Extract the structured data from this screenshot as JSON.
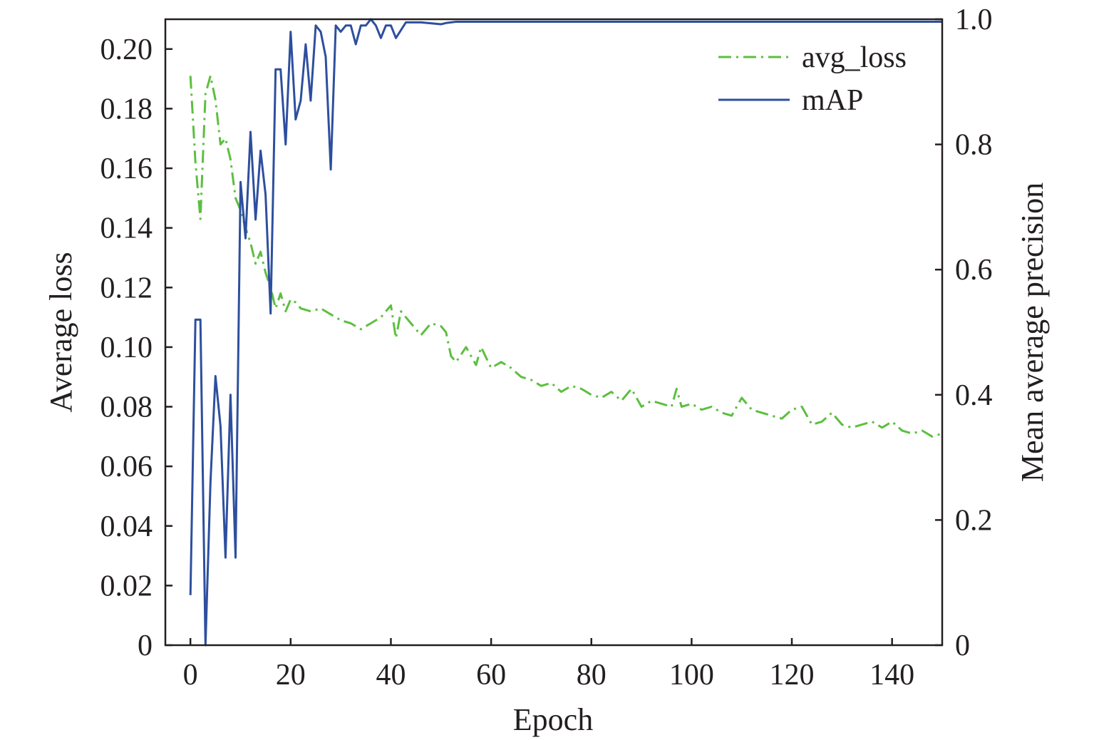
{
  "chart_data": {
    "type": "line",
    "xlabel": "Epoch",
    "ylabel_left": "Average loss",
    "ylabel_right": "Mean average precision",
    "xlim": [
      -5,
      150
    ],
    "ylim_left": [
      0,
      0.21
    ],
    "ylim_right": [
      0,
      1.0
    ],
    "x_ticks": [
      0,
      20,
      40,
      60,
      80,
      100,
      120,
      140
    ],
    "y_left_ticks": [
      {
        "v": 0,
        "label": "0"
      },
      {
        "v": 0.02,
        "label": "0.02"
      },
      {
        "v": 0.04,
        "label": "0.04"
      },
      {
        "v": 0.06,
        "label": "0.06"
      },
      {
        "v": 0.08,
        "label": "0.08"
      },
      {
        "v": 0.1,
        "label": "0.10"
      },
      {
        "v": 0.12,
        "label": "0.12"
      },
      {
        "v": 0.14,
        "label": "0.14"
      },
      {
        "v": 0.16,
        "label": "0.16"
      },
      {
        "v": 0.18,
        "label": "0.18"
      },
      {
        "v": 0.2,
        "label": "0.20"
      }
    ],
    "y_right_ticks": [
      {
        "v": 0,
        "label": "0"
      },
      {
        "v": 0.2,
        "label": "0.2"
      },
      {
        "v": 0.4,
        "label": "0.4"
      },
      {
        "v": 0.6,
        "label": "0.6"
      },
      {
        "v": 0.8,
        "label": "0.8"
      },
      {
        "v": 1.0,
        "label": "1.0"
      }
    ],
    "legend_position": "top-right",
    "grid": false,
    "series": [
      {
        "name": "avg_loss",
        "axis": "left",
        "style": "dash-dot",
        "color": "#5cbf3f",
        "x": [
          0,
          1,
          2,
          3,
          4,
          5,
          6,
          7,
          8,
          9,
          10,
          11,
          12,
          13,
          14,
          15,
          16,
          17,
          18,
          19,
          20,
          21,
          22,
          24,
          26,
          28,
          30,
          32,
          34,
          36,
          38,
          40,
          41,
          42,
          44,
          46,
          48,
          50,
          51,
          52,
          53,
          55,
          57,
          58,
          60,
          62,
          64,
          66,
          68,
          70,
          72,
          74,
          76,
          78,
          80,
          82,
          84,
          86,
          88,
          90,
          92,
          94,
          96,
          97,
          98,
          100,
          102,
          104,
          106,
          108,
          110,
          112,
          114,
          116,
          118,
          120,
          122,
          124,
          126,
          128,
          130,
          132,
          134,
          136,
          138,
          140,
          142,
          144,
          146,
          148,
          150
        ],
        "y": [
          0.191,
          0.162,
          0.143,
          0.185,
          0.191,
          0.183,
          0.168,
          0.17,
          0.163,
          0.15,
          0.146,
          0.14,
          0.135,
          0.128,
          0.132,
          0.125,
          0.12,
          0.113,
          0.118,
          0.112,
          0.116,
          0.115,
          0.113,
          0.112,
          0.113,
          0.111,
          0.109,
          0.108,
          0.106,
          0.108,
          0.11,
          0.114,
          0.103,
          0.112,
          0.108,
          0.104,
          0.108,
          0.107,
          0.105,
          0.097,
          0.095,
          0.1,
          0.094,
          0.1,
          0.093,
          0.095,
          0.093,
          0.09,
          0.089,
          0.087,
          0.088,
          0.085,
          0.087,
          0.086,
          0.084,
          0.083,
          0.085,
          0.082,
          0.086,
          0.08,
          0.082,
          0.081,
          0.08,
          0.086,
          0.08,
          0.081,
          0.079,
          0.08,
          0.078,
          0.077,
          0.083,
          0.079,
          0.078,
          0.077,
          0.076,
          0.079,
          0.08,
          0.074,
          0.075,
          0.078,
          0.074,
          0.073,
          0.074,
          0.075,
          0.073,
          0.075,
          0.072,
          0.071,
          0.072,
          0.07,
          0.071
        ]
      },
      {
        "name": "mAP",
        "axis": "right",
        "style": "solid",
        "color": "#2e4f9e",
        "x": [
          0,
          1,
          2,
          3,
          4,
          5,
          6,
          7,
          8,
          9,
          10,
          11,
          12,
          13,
          14,
          15,
          16,
          17,
          18,
          19,
          20,
          21,
          22,
          23,
          24,
          25,
          26,
          27,
          28,
          29,
          30,
          31,
          32,
          33,
          34,
          35,
          36,
          37,
          38,
          39,
          40,
          41,
          43,
          46,
          50,
          51,
          53,
          55,
          60,
          70,
          80,
          90,
          100,
          110,
          120,
          130,
          140,
          150
        ],
        "y": [
          0.08,
          0.52,
          0.52,
          0.0,
          0.26,
          0.43,
          0.35,
          0.14,
          0.4,
          0.14,
          0.74,
          0.65,
          0.82,
          0.68,
          0.79,
          0.72,
          0.53,
          0.92,
          0.92,
          0.8,
          0.98,
          0.84,
          0.87,
          0.96,
          0.87,
          0.99,
          0.98,
          0.94,
          0.76,
          0.99,
          0.98,
          0.99,
          0.99,
          0.96,
          0.99,
          0.99,
          1.0,
          0.99,
          0.97,
          0.99,
          0.99,
          0.97,
          0.995,
          0.995,
          0.992,
          0.994,
          0.996,
          0.996,
          0.996,
          0.996,
          0.996,
          0.996,
          0.996,
          0.996,
          0.996,
          0.996,
          0.996,
          0.996
        ]
      }
    ]
  }
}
